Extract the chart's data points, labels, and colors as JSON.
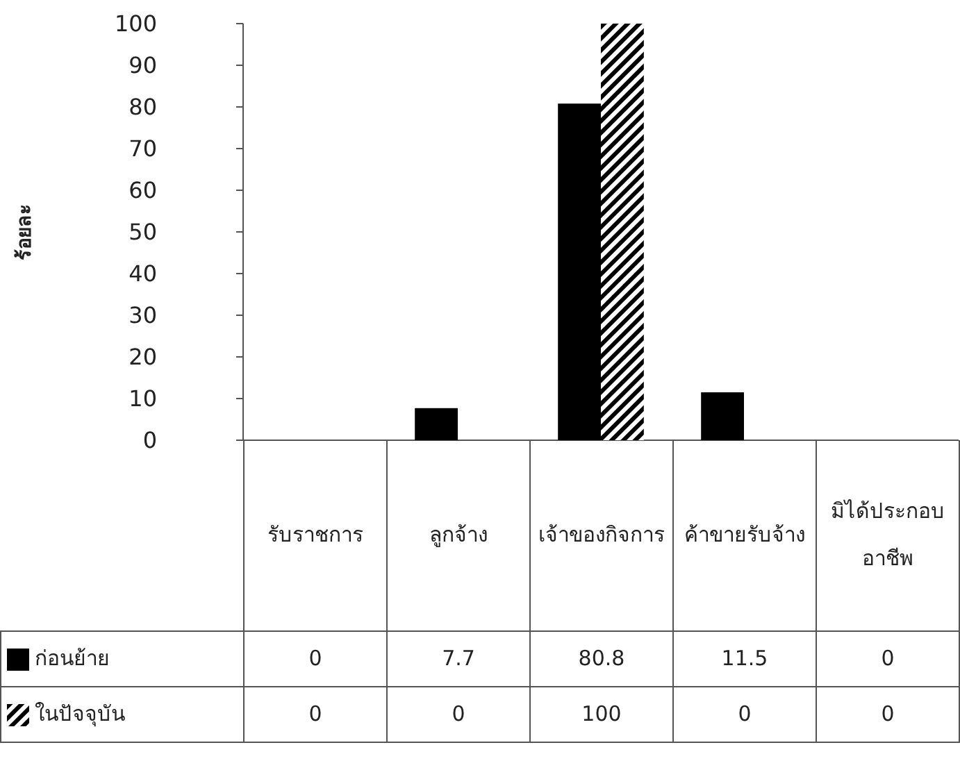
{
  "chart_data": {
    "type": "bar",
    "ylabel": "ร้อยละ",
    "categories": [
      "รับราชการ",
      "ลูกจ้าง",
      "เจ้าของกิจการ",
      "ค้าขายรับจ้าง",
      "มิได้ประกอบอาชีพ"
    ],
    "series": [
      {
        "name": "ก่อนย้าย",
        "color": "#000000",
        "values": [
          0,
          7.7,
          80.8,
          11.5,
          0
        ]
      },
      {
        "name": "ในปัจจุบัน",
        "color": "#000000",
        "values": [
          0,
          0,
          100,
          0,
          0
        ]
      }
    ],
    "ylim": [
      0,
      100
    ],
    "yticks": [
      0,
      10,
      20,
      30,
      40,
      50,
      60,
      70,
      80,
      90,
      100
    ],
    "data_labels": true,
    "legend": "bottom"
  }
}
